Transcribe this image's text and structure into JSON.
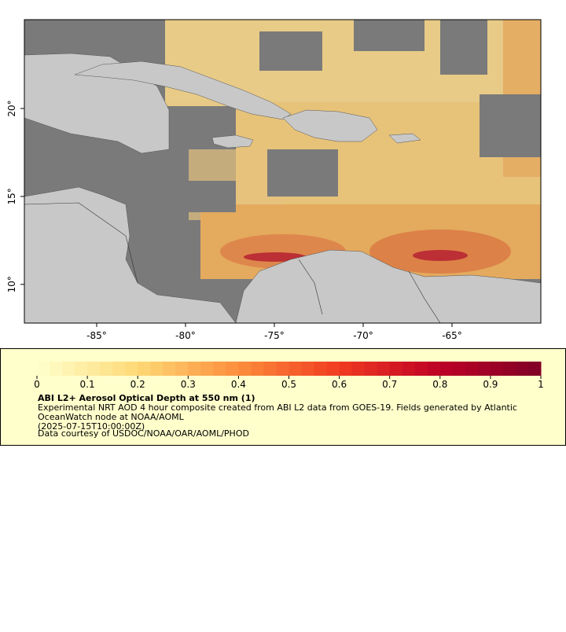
{
  "map": {
    "xlim": [
      -89.07,
      -60.0
    ],
    "ylim": [
      7.8,
      25.05
    ],
    "xticks": [
      {
        "value": -85,
        "label": "-85°"
      },
      {
        "value": -80,
        "label": "-80°"
      },
      {
        "value": -75,
        "label": "-75°"
      },
      {
        "value": -70,
        "label": "-70°"
      },
      {
        "value": -65,
        "label": "-65°"
      }
    ],
    "yticks": [
      {
        "value": 10,
        "label": "10°"
      },
      {
        "value": 15,
        "label": "15°"
      },
      {
        "value": 20,
        "label": "20°"
      }
    ]
  },
  "legend": {
    "colorbar": {
      "lim": [
        0,
        1
      ],
      "ticks": [
        0,
        0.1,
        0.2,
        0.3,
        0.4,
        0.5,
        0.6,
        0.7,
        0.8,
        0.9,
        1
      ]
    },
    "title": "ABI L2+ Aerosol Optical Depth at 550 nm (1)",
    "lines": [
      "Experimental NRT AOD 4 hour composite created from ABI L2 data from GOES-19. Fields generated by Atlantic",
      "OceanWatch node at NOAA/AOML",
      "(2025-07-15T10:00:00Z)",
      "Data courtesy of USDOC/NOAA/OAR/AOML/PHOD"
    ]
  }
}
